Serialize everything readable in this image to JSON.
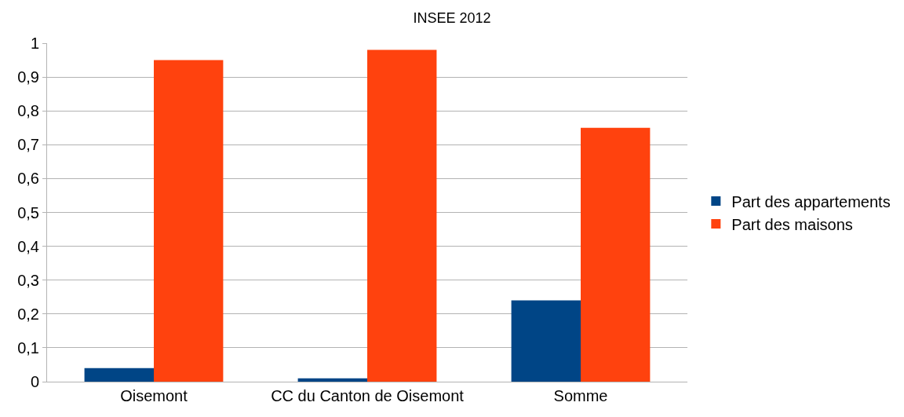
{
  "chart_data": {
    "type": "bar",
    "title": "INSEE 2012",
    "categories": [
      "Oisemont",
      "CC du Canton de Oisemont",
      "Somme"
    ],
    "series": [
      {
        "name": "Part des appartements",
        "color": "#004586",
        "values": [
          0.04,
          0.01,
          0.24
        ]
      },
      {
        "name": "Part des maisons",
        "color": "#ff420e",
        "values": [
          0.95,
          0.98,
          0.75
        ]
      }
    ],
    "ylim": [
      0,
      1
    ],
    "yticks": [
      0,
      {
        "value": 0.1,
        "label": "0,1"
      },
      {
        "value": 0.2,
        "label": "0,2"
      },
      {
        "value": 0.3,
        "label": "0,3"
      },
      {
        "value": 0.4,
        "label": "0,4"
      },
      {
        "value": 0.5,
        "label": "0,5"
      },
      {
        "value": 0.6,
        "label": "0,6"
      },
      {
        "value": 0.7,
        "label": "0,7"
      },
      {
        "value": 0.8,
        "label": "0,8"
      },
      {
        "value": 0.9,
        "label": "0,9"
      },
      1
    ],
    "grid": "y",
    "legend": "right"
  }
}
